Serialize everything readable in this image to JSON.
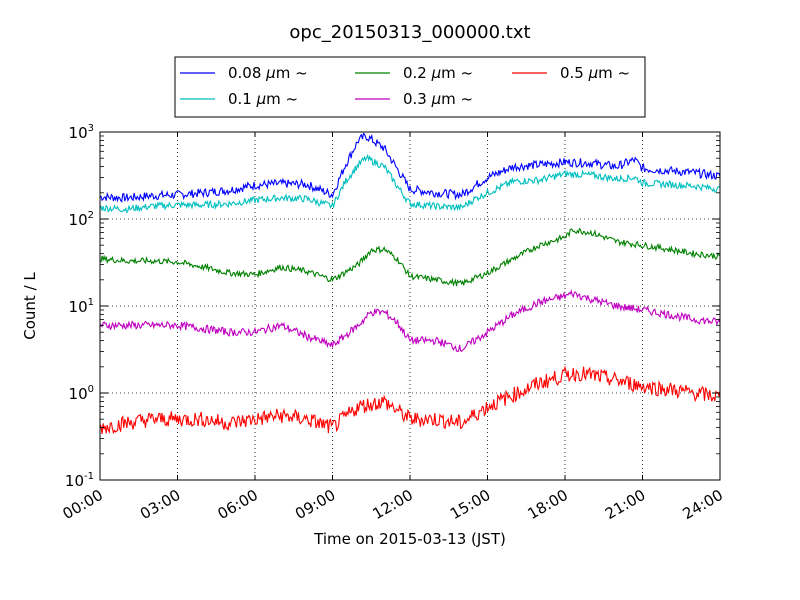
{
  "chart_data": {
    "type": "line",
    "title": "opc_20150313_000000.txt",
    "xlabel": "Time on 2015-03-13 (JST)",
    "ylabel": "Count / L",
    "xlim": [
      0,
      24
    ],
    "ylim": [
      0.1,
      1000
    ],
    "yscale": "log",
    "grid": true,
    "legend_position": "top (above plot), 3 columns",
    "x_ticks": [
      0,
      3,
      6,
      9,
      12,
      15,
      18,
      21,
      24
    ],
    "x_tick_labels": [
      "00:00",
      "03:00",
      "06:00",
      "09:00",
      "12:00",
      "15:00",
      "18:00",
      "21:00",
      "24:00"
    ],
    "y_ticks": [
      0.1,
      1,
      10,
      100,
      1000
    ],
    "y_tick_bases": [
      "10",
      "10",
      "10",
      "10",
      "10"
    ],
    "y_tick_exps": [
      "-1",
      "0",
      "1",
      "2",
      "3"
    ],
    "series": [
      {
        "name": "0.08 μm ~",
        "legend": {
          "pre": "0.08 ",
          "mu": "μ",
          "post": "m ~"
        },
        "color": "#0000ff",
        "x": [
          0,
          1,
          2,
          3,
          4,
          5,
          6,
          7,
          8,
          9,
          9.5,
          10,
          10.3,
          11,
          11.5,
          12,
          13,
          14,
          14.5,
          15,
          16,
          17,
          18,
          19,
          20,
          20.7,
          21,
          22,
          23,
          24
        ],
        "y": [
          180,
          175,
          185,
          190,
          200,
          215,
          245,
          255,
          250,
          190,
          420,
          800,
          900,
          650,
          380,
          220,
          200,
          190,
          240,
          300,
          400,
          420,
          450,
          440,
          400,
          480,
          380,
          360,
          340,
          310
        ]
      },
      {
        "name": "0.1 μm ~",
        "legend": {
          "pre": "0.1 ",
          "mu": "μ",
          "post": "m ~"
        },
        "color": "#00bfbf",
        "x": [
          0,
          1,
          2,
          3,
          4,
          5,
          6,
          7,
          8,
          9,
          9.5,
          10,
          10.3,
          11,
          11.5,
          12,
          13,
          14,
          14.5,
          15,
          16,
          17,
          18,
          19,
          20,
          20.7,
          21,
          22,
          23,
          24
        ],
        "y": [
          135,
          130,
          140,
          145,
          145,
          150,
          165,
          175,
          170,
          140,
          270,
          420,
          500,
          400,
          240,
          150,
          140,
          135,
          170,
          200,
          270,
          280,
          330,
          320,
          290,
          300,
          260,
          250,
          240,
          220
        ]
      },
      {
        "name": "0.2 μm ~",
        "legend": {
          "pre": "0.2 ",
          "mu": "μ",
          "post": "m ~"
        },
        "color": "#008000",
        "x": [
          0,
          1,
          2,
          3,
          4,
          5,
          6,
          7,
          8,
          9,
          10,
          10.5,
          11,
          11.5,
          12,
          13,
          14,
          15,
          16,
          17,
          18,
          18.3,
          19,
          20,
          21,
          22,
          23,
          24
        ],
        "y": [
          35,
          33,
          33,
          32,
          28,
          24,
          23,
          28,
          25,
          20,
          30,
          44,
          45,
          35,
          22,
          20,
          18,
          24,
          35,
          50,
          62,
          75,
          70,
          55,
          50,
          45,
          40,
          37
        ]
      },
      {
        "name": "0.3 μm ~",
        "legend": {
          "pre": "0.3 ",
          "mu": "μ",
          "post": "m ~"
        },
        "color": "#bf00bf",
        "x": [
          0,
          1,
          2,
          3,
          4,
          5,
          6,
          7,
          8,
          9,
          10,
          10.5,
          11,
          11.5,
          12,
          13,
          14,
          15,
          16,
          17,
          18,
          18.3,
          19,
          20,
          21,
          22,
          23,
          24
        ],
        "y": [
          6,
          6,
          6,
          6,
          5.5,
          5,
          5,
          6,
          4.5,
          3.5,
          6,
          8.5,
          8.5,
          6.5,
          4,
          4,
          3.2,
          5,
          8,
          11,
          13,
          14,
          12,
          10,
          9,
          8,
          7,
          6.5
        ]
      },
      {
        "name": "0.5 μm ~",
        "legend": {
          "pre": "0.5 ",
          "mu": "μ",
          "post": "m ~"
        },
        "color": "#ff0000",
        "x": [
          0,
          1,
          2,
          3,
          4,
          5,
          6,
          7,
          8,
          9,
          10,
          11,
          12,
          13,
          14,
          15,
          16,
          17,
          18,
          18.5,
          19,
          20,
          21,
          22,
          23,
          24
        ],
        "y": [
          0.4,
          0.45,
          0.5,
          0.5,
          0.5,
          0.45,
          0.5,
          0.55,
          0.5,
          0.4,
          0.7,
          0.8,
          0.5,
          0.5,
          0.45,
          0.7,
          0.95,
          1.3,
          1.6,
          1.7,
          1.6,
          1.4,
          1.2,
          1.1,
          1,
          0.9
        ]
      }
    ]
  }
}
